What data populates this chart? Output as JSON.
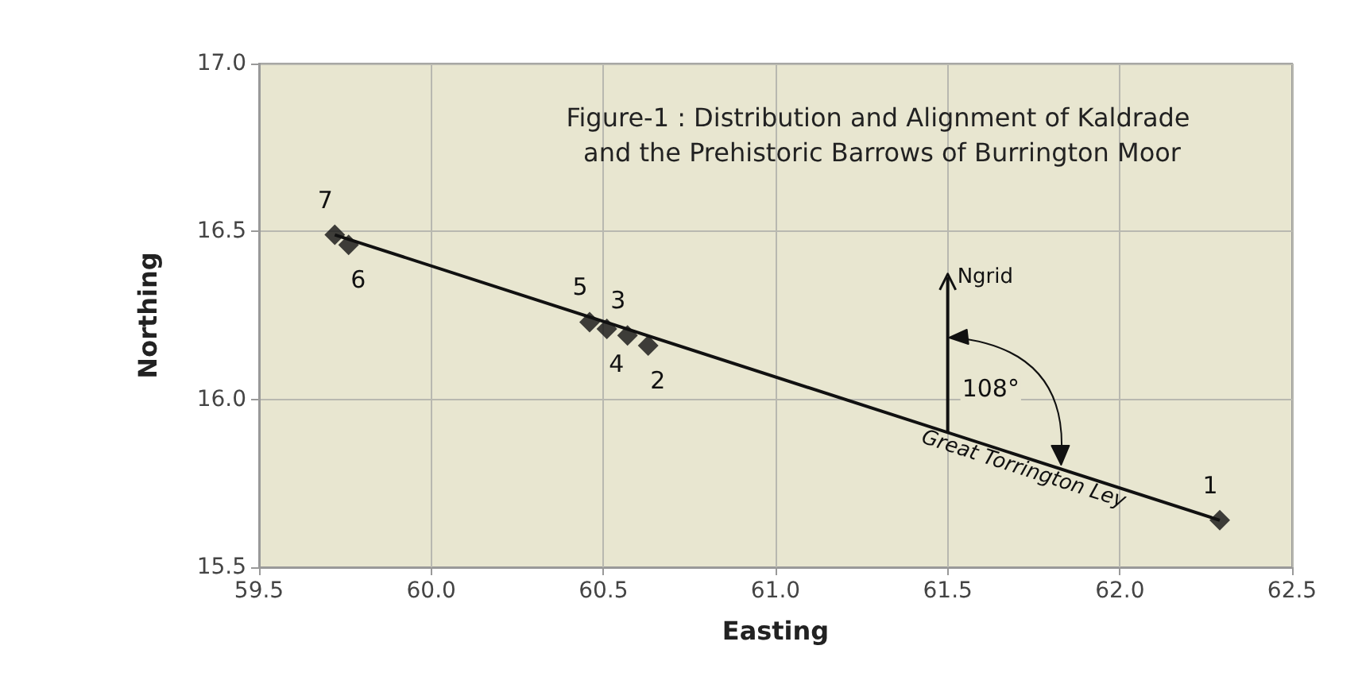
{
  "chart_data": {
    "type": "scatter",
    "title": "Figure-1 : Distribution and Alignment of Kaldrade and the Prehistoric Barrows of Burrington Moor",
    "xlabel": "Easting",
    "ylabel": "Northing",
    "xlim": [
      59.5,
      62.5
    ],
    "xticks": [
      {
        "value": 59.5,
        "label": "59.5"
      },
      {
        "value": 60,
        "label": "60.0"
      },
      {
        "value": 60.5,
        "label": "60.5"
      },
      {
        "value": 61,
        "label": "61.0"
      },
      {
        "value": 61.5,
        "label": "61.5"
      },
      {
        "value": 62,
        "label": "62.0"
      },
      {
        "value": 62.5,
        "label": "62.5"
      }
    ],
    "ylim": [
      15.5,
      17
    ],
    "yticks": [
      {
        "value": 15.5,
        "label": "15.5"
      },
      {
        "value": 16,
        "label": "16.0"
      },
      {
        "value": 16.5,
        "label": "16.5"
      },
      {
        "value": 17,
        "label": "17.0"
      }
    ],
    "grid": true,
    "series": [
      {
        "type": "line",
        "color": "#111111",
        "marker": "none",
        "x": [
          59.72,
          62.29
        ],
        "values": [
          16.49,
          15.64
        ]
      },
      {
        "type": "scatter",
        "color": "#111111",
        "marker": "diamond",
        "x": [
          62.29,
          60.63,
          60.57,
          60.51,
          60.46,
          59.76,
          59.72
        ],
        "values": [
          15.64,
          16.16,
          16.19,
          16.21,
          16.23,
          16.46,
          16.49
        ]
      }
    ],
    "annotations": [
      {
        "text": "1",
        "x": 62.29,
        "y": 15.64
      },
      {
        "text": "2",
        "x": 60.63,
        "y": 16.16
      },
      {
        "text": "3",
        "x": 60.57,
        "y": 16.19
      },
      {
        "text": "4",
        "x": 60.51,
        "y": 16.21
      },
      {
        "text": "5",
        "x": 60.46,
        "y": 16.23
      },
      {
        "text": "6",
        "x": 59.76,
        "y": 16.46
      },
      {
        "text": "7",
        "x": 59.72,
        "y": 16.49
      },
      {
        "text": "Ngrid",
        "x": 61.5,
        "y": 15.9
      },
      "108°",
      {
        "text": "Great Torrington Ley",
        "x": 61.72,
        "y": 15.8
      }
    ]
  }
}
